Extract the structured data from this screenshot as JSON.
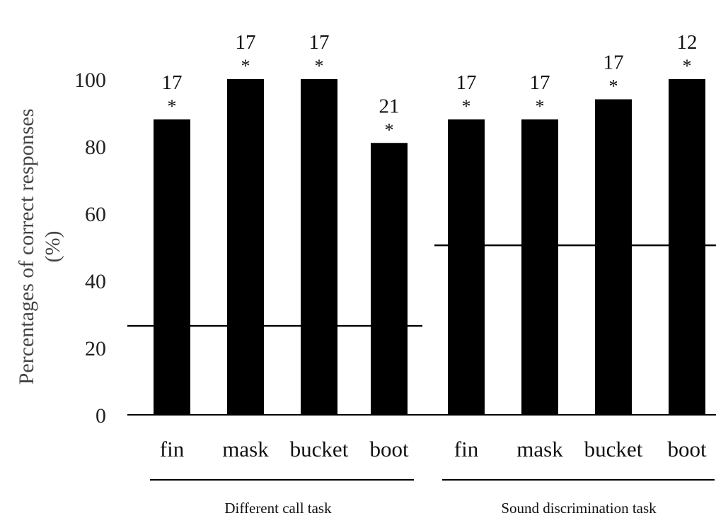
{
  "chart_data": {
    "type": "bar",
    "ylabel": "Percentages of correct responses",
    "ylabel_unit": "(%)",
    "ylim": [
      0,
      100
    ],
    "yticks": [
      "0",
      "20",
      "40",
      "60",
      "80",
      "100"
    ],
    "groups": [
      {
        "name": "Different call task",
        "chance_level": 26.5,
        "bars": [
          {
            "category": "fin",
            "value": 88,
            "n": "17",
            "sig": "*"
          },
          {
            "category": "mask",
            "value": 100,
            "n": "17",
            "sig": "*"
          },
          {
            "category": "bucket",
            "value": 100,
            "n": "17",
            "sig": "*"
          },
          {
            "category": "boot",
            "value": 81,
            "n": "21",
            "sig": "*"
          }
        ]
      },
      {
        "name": "Sound discrimination task",
        "chance_level": 50.5,
        "bars": [
          {
            "category": "fin",
            "value": 88,
            "n": "17",
            "sig": "*"
          },
          {
            "category": "mask",
            "value": 88,
            "n": "17",
            "sig": "*"
          },
          {
            "category": "bucket",
            "value": 94,
            "n": "17",
            "sig": "*"
          },
          {
            "category": "boot",
            "value": 100,
            "n": "12",
            "sig": "*"
          }
        ]
      }
    ],
    "colors": {
      "bar": "#000000",
      "axis": "#000000",
      "chance_line": "#000000"
    }
  }
}
